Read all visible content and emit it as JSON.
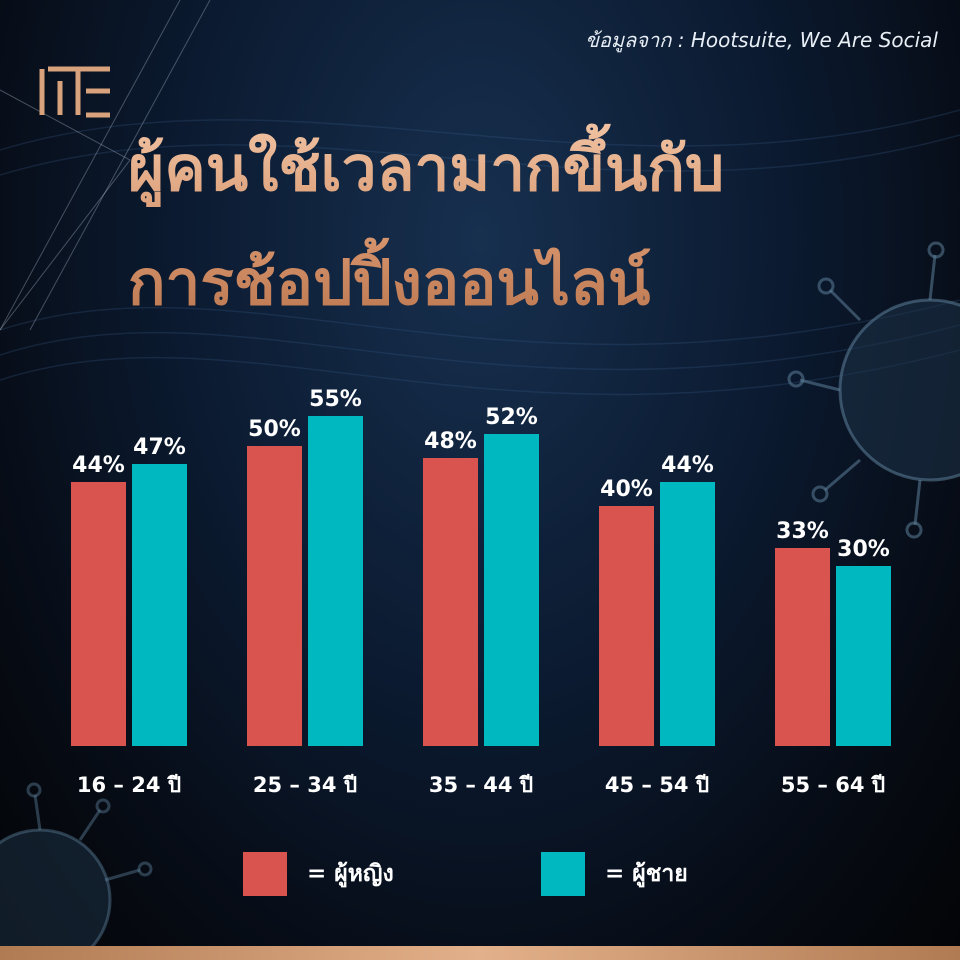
{
  "source_text": "ข้อมูลจาก : Hootsuite, We Are Social",
  "title_lines": [
    "ผู้คนใช้เวลามากขึ้นกับ",
    "การช้อปปิ้งออนไลน์"
  ],
  "colors": {
    "female": "#d9534f",
    "male": "#00b8c0",
    "title": "#d9a07c",
    "accent": "#d7a27c"
  },
  "logo_icon": "brand-logo-icon",
  "legend": [
    {
      "key": "female",
      "text": "=  ผู้หญิง"
    },
    {
      "key": "male",
      "text": "=  ผู้ชาย"
    }
  ],
  "chart_data": {
    "type": "bar",
    "title": "ผู้คนใช้เวลามากขึ้นกับการช้อปปิ้งออนไลน์",
    "categories": [
      "16 – 24 ปี",
      "25 – 34 ปี",
      "35 – 44 ปี",
      "45 – 54 ปี",
      "55 – 64 ปี"
    ],
    "series": [
      {
        "name": "ผู้หญิง",
        "values": [
          44,
          50,
          48,
          40,
          33
        ],
        "labels": [
          "44%",
          "50%",
          "48%",
          "40%",
          "33%"
        ]
      },
      {
        "name": "ผู้ชาย",
        "values": [
          47,
          55,
          52,
          44,
          30
        ],
        "labels": [
          "47%",
          "55%",
          "52%",
          "44%",
          "30%"
        ]
      }
    ],
    "xlabel": "",
    "ylabel": "",
    "ylim": [
      0,
      55
    ],
    "grid": false,
    "legend_position": "bottom"
  }
}
